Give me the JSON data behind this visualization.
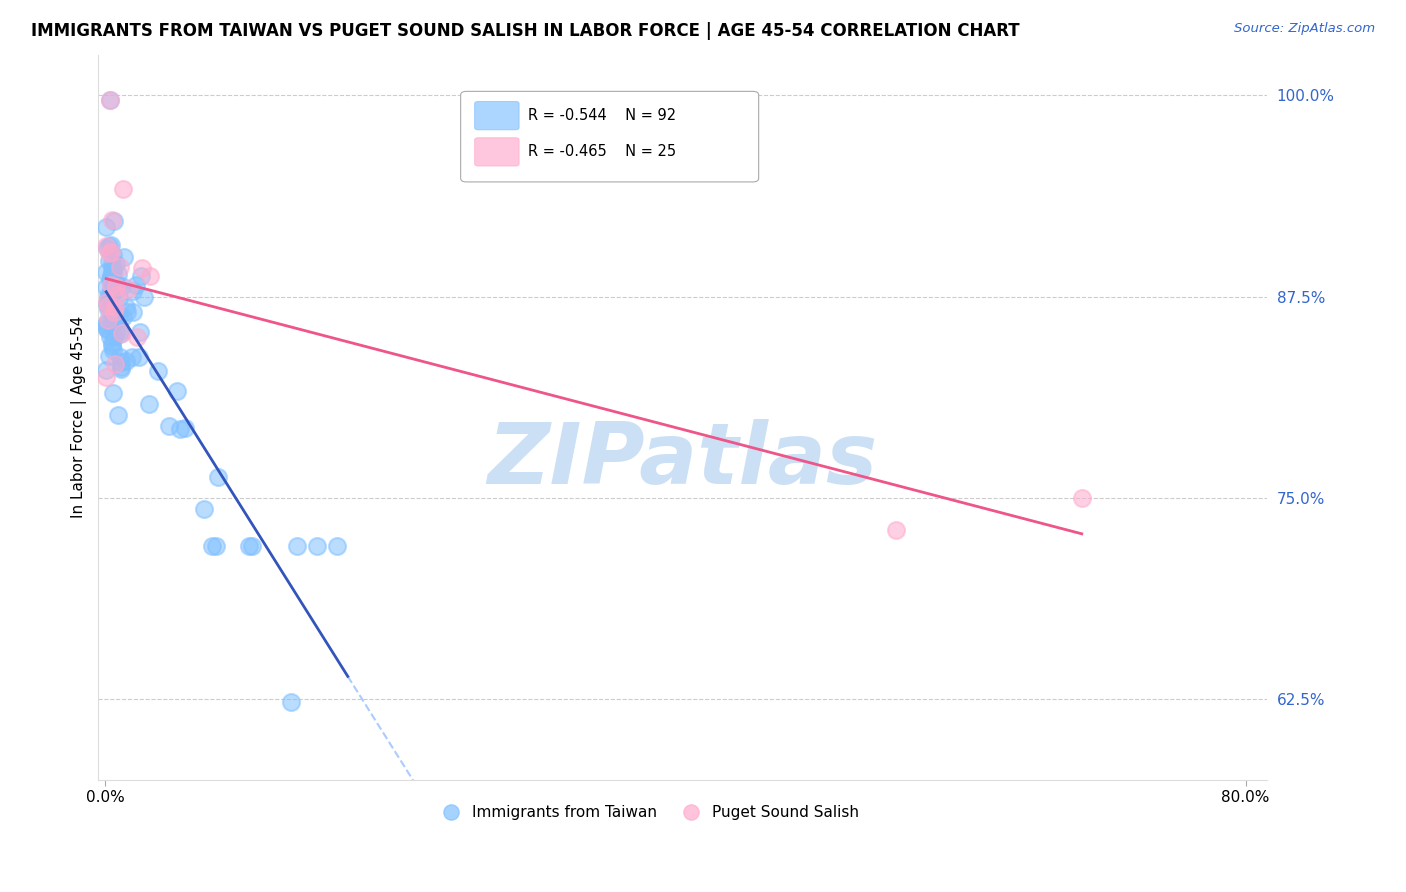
{
  "title": "IMMIGRANTS FROM TAIWAN VS PUGET SOUND SALISH IN LABOR FORCE | AGE 45-54 CORRELATION CHART",
  "source": "Source: ZipAtlas.com",
  "ylabel": "In Labor Force | Age 45-54",
  "xlim": [
    -0.005,
    0.815
  ],
  "ylim": [
    0.575,
    1.025
  ],
  "yticks_right": [
    1.0,
    0.875,
    0.75,
    0.625
  ],
  "ytick_right_labels": [
    "100.0%",
    "87.5%",
    "75.0%",
    "62.5%"
  ],
  "taiwan_R": -0.544,
  "taiwan_N": 92,
  "salish_R": -0.465,
  "salish_N": 25,
  "taiwan_color": "#80c0ff",
  "salish_color": "#ffaacc",
  "taiwan_line_color": "#3355bb",
  "salish_line_color": "#ee5588",
  "taiwan_dashed_color": "#aaccff",
  "background_color": "#ffffff",
  "watermark": "ZIPatlas",
  "watermark_color": "#cce0f5",
  "legend_label_taiwan": "Immigrants from Taiwan",
  "legend_label_salish": "Puget Sound Salish"
}
